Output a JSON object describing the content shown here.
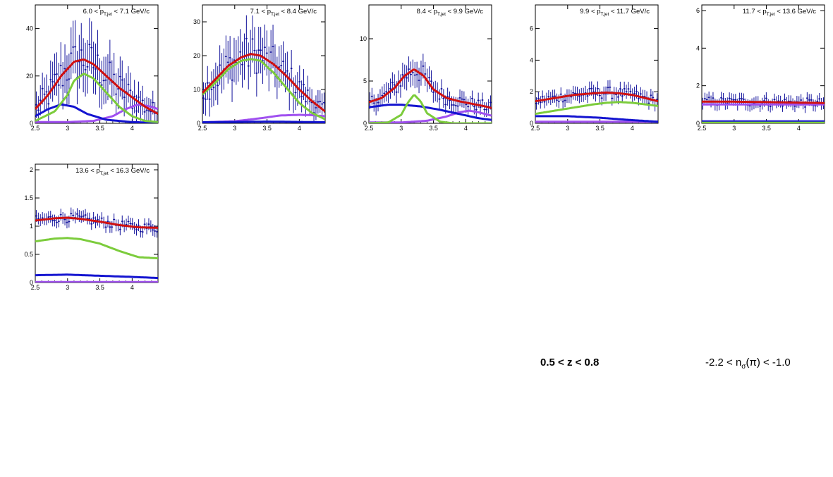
{
  "colors": {
    "data": "#10109a",
    "total": "#d01010",
    "green": "#7ccc3c",
    "blue": "#1414d0",
    "violet": "#a050f0",
    "frame": "#000000"
  },
  "labels": {
    "z_range": "0.5 < z < 0.8",
    "nsigma_pre": "-2.2 < n",
    "nsigma_sub": "σ",
    "nsigma_post": "(π) < -1.0"
  },
  "chart_data": [
    {
      "type": "line",
      "title_pre": "6.0 < p",
      "title_sub": "T,jet",
      "title_post": " < 7.1 GeV/c",
      "xlim": [
        2.5,
        4.4
      ],
      "ylim": [
        0,
        50
      ],
      "xticks": [
        "2.5",
        "3",
        "3.5",
        "4"
      ],
      "yticks": [
        "0",
        "20",
        "40"
      ],
      "curves": {
        "total": {
          "x": [
            2.5,
            2.7,
            2.9,
            3.1,
            3.25,
            3.4,
            3.6,
            3.8,
            4.0,
            4.2,
            4.4
          ],
          "y": [
            6,
            12,
            20,
            26,
            27,
            25,
            20,
            15,
            11,
            7,
            4
          ]
        },
        "green": {
          "x": [
            2.5,
            2.8,
            3.0,
            3.1,
            3.25,
            3.4,
            3.6,
            3.8,
            4.0,
            4.2,
            4.4
          ],
          "y": [
            1,
            5,
            12,
            18,
            21,
            19,
            13,
            7,
            3,
            1,
            0.5
          ]
        },
        "blue": {
          "x": [
            2.5,
            2.7,
            2.9,
            3.1,
            3.3,
            3.6,
            4.0,
            4.4
          ],
          "y": [
            3,
            6,
            8,
            7,
            4,
            1.5,
            0.5,
            0.2
          ]
        },
        "violet": {
          "x": [
            2.5,
            3.0,
            3.4,
            3.7,
            3.9,
            4.1,
            4.3,
            4.4
          ],
          "y": [
            0.5,
            0.5,
            1,
            3,
            6,
            8,
            7,
            6
          ]
        }
      }
    },
    {
      "type": "line",
      "title_pre": "7.1 < p",
      "title_sub": "T,jet",
      "title_post": " < 8.4 GeV/c",
      "xlim": [
        2.5,
        4.4
      ],
      "ylim": [
        0,
        35
      ],
      "xticks": [
        "2.5",
        "3",
        "3.5",
        "4"
      ],
      "yticks": [
        "0",
        "10",
        "20",
        "30"
      ],
      "curves": {
        "total": {
          "x": [
            2.5,
            2.7,
            2.9,
            3.1,
            3.25,
            3.4,
            3.6,
            3.8,
            4.0,
            4.2,
            4.4
          ],
          "y": [
            9,
            13,
            17,
            19.5,
            20.5,
            20,
            17.5,
            14,
            10,
            6.5,
            3.5
          ]
        },
        "green": {
          "x": [
            2.5,
            2.7,
            2.9,
            3.1,
            3.25,
            3.4,
            3.6,
            3.8,
            4.0,
            4.2,
            4.4
          ],
          "y": [
            8.5,
            12,
            16,
            18.5,
            19,
            18.5,
            15,
            10.5,
            6,
            3,
            1.2
          ]
        },
        "blue": {
          "x": [
            2.5,
            3.0,
            3.5,
            4.0,
            4.4
          ],
          "y": [
            0.3,
            0.4,
            0.5,
            0.4,
            0.3
          ]
        },
        "violet": {
          "x": [
            2.5,
            3.0,
            3.4,
            3.7,
            4.0,
            4.2,
            4.4
          ],
          "y": [
            0.3,
            0.6,
            1.5,
            2.3,
            2.5,
            2.4,
            2.1
          ]
        }
      }
    },
    {
      "type": "line",
      "title_pre": "8.4 < p",
      "title_sub": "T,jet",
      "title_post": " < 9.9 GeV/c",
      "xlim": [
        2.5,
        4.4
      ],
      "ylim": [
        0,
        14
      ],
      "xticks": [
        "2.5",
        "3",
        "3.5",
        "4"
      ],
      "yticks": [
        "0",
        "5",
        "10"
      ],
      "curves": {
        "total": {
          "x": [
            2.5,
            2.7,
            2.9,
            3.05,
            3.2,
            3.35,
            3.5,
            3.7,
            3.9,
            4.1,
            4.3,
            4.4
          ],
          "y": [
            2.5,
            3,
            4.2,
            5.6,
            6.4,
            5.6,
            4,
            3,
            2.6,
            2.3,
            2,
            1.8
          ]
        },
        "green": {
          "x": [
            2.5,
            2.8,
            3.0,
            3.1,
            3.2,
            3.3,
            3.4,
            3.6,
            3.8,
            4.4
          ],
          "y": [
            0,
            0.1,
            1,
            2.4,
            3.4,
            2.6,
            1.2,
            0.2,
            0,
            0
          ]
        },
        "blue": {
          "x": [
            2.5,
            2.8,
            3.0,
            3.3,
            3.6,
            3.9,
            4.2,
            4.4
          ],
          "y": [
            1.9,
            2.2,
            2.2,
            2,
            1.6,
            1.1,
            0.6,
            0.4
          ]
        },
        "violet": {
          "x": [
            2.5,
            3.0,
            3.4,
            3.7,
            3.9,
            4.05,
            4.2,
            4.4
          ],
          "y": [
            0.1,
            0.1,
            0.3,
            0.8,
            1.3,
            1.5,
            1.3,
            0.9
          ]
        }
      }
    },
    {
      "type": "line",
      "title_pre": "9.9 < p",
      "title_sub": "T,jet",
      "title_post": " < 11.7 GeV/c",
      "xlim": [
        2.5,
        4.4
      ],
      "ylim": [
        0,
        7.5
      ],
      "xticks": [
        "2.5",
        "3",
        "3.5",
        "4"
      ],
      "yticks": [
        "0",
        "2",
        "4",
        "6"
      ],
      "curves": {
        "total": {
          "x": [
            2.5,
            2.8,
            3.1,
            3.4,
            3.6,
            3.8,
            4.0,
            4.2,
            4.4
          ],
          "y": [
            1.4,
            1.6,
            1.8,
            1.9,
            1.95,
            1.9,
            1.8,
            1.6,
            1.4
          ]
        },
        "green": {
          "x": [
            2.5,
            2.8,
            3.1,
            3.4,
            3.6,
            3.8,
            4.0,
            4.2,
            4.4
          ],
          "y": [
            0.6,
            0.8,
            1,
            1.2,
            1.3,
            1.35,
            1.3,
            1.2,
            1.1
          ]
        },
        "blue": {
          "x": [
            2.5,
            3.0,
            3.5,
            4.0,
            4.4
          ],
          "y": [
            0.45,
            0.45,
            0.35,
            0.2,
            0.1
          ]
        },
        "violet": {
          "x": [
            2.5,
            3.0,
            3.5,
            4.0,
            4.4
          ],
          "y": [
            0.1,
            0.1,
            0.1,
            0.1,
            0.1
          ]
        }
      }
    },
    {
      "type": "line",
      "title_pre": "11.7 < p",
      "title_sub": "T,jet",
      "title_post": " < 13.6 GeV/c",
      "xlim": [
        2.5,
        4.4
      ],
      "ylim": [
        0,
        6.3
      ],
      "xticks": [
        "2.5",
        "3",
        "3.5",
        "4"
      ],
      "yticks": [
        "0",
        "2",
        "4",
        "6"
      ],
      "curves": {
        "total": {
          "x": [
            2.5,
            3.0,
            3.5,
            4.0,
            4.4
          ],
          "y": [
            1.15,
            1.15,
            1.13,
            1.1,
            1.08
          ]
        },
        "green": {
          "x": [
            2.5,
            3.0,
            3.5,
            4.0,
            4.4
          ],
          "y": [
            0.03,
            0.03,
            0.03,
            0.03,
            0.03
          ]
        },
        "blue": {
          "x": [
            2.5,
            3.0,
            3.5,
            4.0,
            4.4
          ],
          "y": [
            0.1,
            0.1,
            0.1,
            0.1,
            0.1
          ]
        },
        "violet": {
          "x": [
            2.5,
            3.0,
            3.5,
            4.0,
            4.4
          ],
          "y": [
            1.0,
            1.0,
            1.0,
            1.0,
            1.0
          ]
        }
      }
    },
    {
      "type": "line",
      "title_pre": "13.6 < p",
      "title_sub": "T,jet",
      "title_post": " < 16.3 GeV/c",
      "xlim": [
        2.5,
        4.4
      ],
      "ylim": [
        0,
        2.1
      ],
      "xticks": [
        "2.5",
        "3",
        "3.5",
        "4"
      ],
      "yticks": [
        "0",
        "0.5",
        "1",
        "1.5",
        "2"
      ],
      "curves": {
        "total": {
          "x": [
            2.5,
            2.8,
            3.0,
            3.2,
            3.5,
            3.8,
            4.1,
            4.4
          ],
          "y": [
            1.1,
            1.14,
            1.15,
            1.13,
            1.08,
            1.02,
            0.98,
            0.97
          ]
        },
        "green": {
          "x": [
            2.5,
            2.8,
            3.0,
            3.2,
            3.5,
            3.8,
            4.1,
            4.4
          ],
          "y": [
            0.73,
            0.78,
            0.79,
            0.77,
            0.69,
            0.56,
            0.45,
            0.43
          ]
        },
        "blue": {
          "x": [
            2.5,
            3.0,
            3.5,
            4.0,
            4.4
          ],
          "y": [
            0.13,
            0.14,
            0.12,
            0.1,
            0.08
          ]
        },
        "violet": {
          "x": [
            2.5,
            3.0,
            3.5,
            4.0,
            4.4
          ],
          "y": [
            0.01,
            0.01,
            0.01,
            0.01,
            0.01
          ]
        }
      }
    }
  ]
}
